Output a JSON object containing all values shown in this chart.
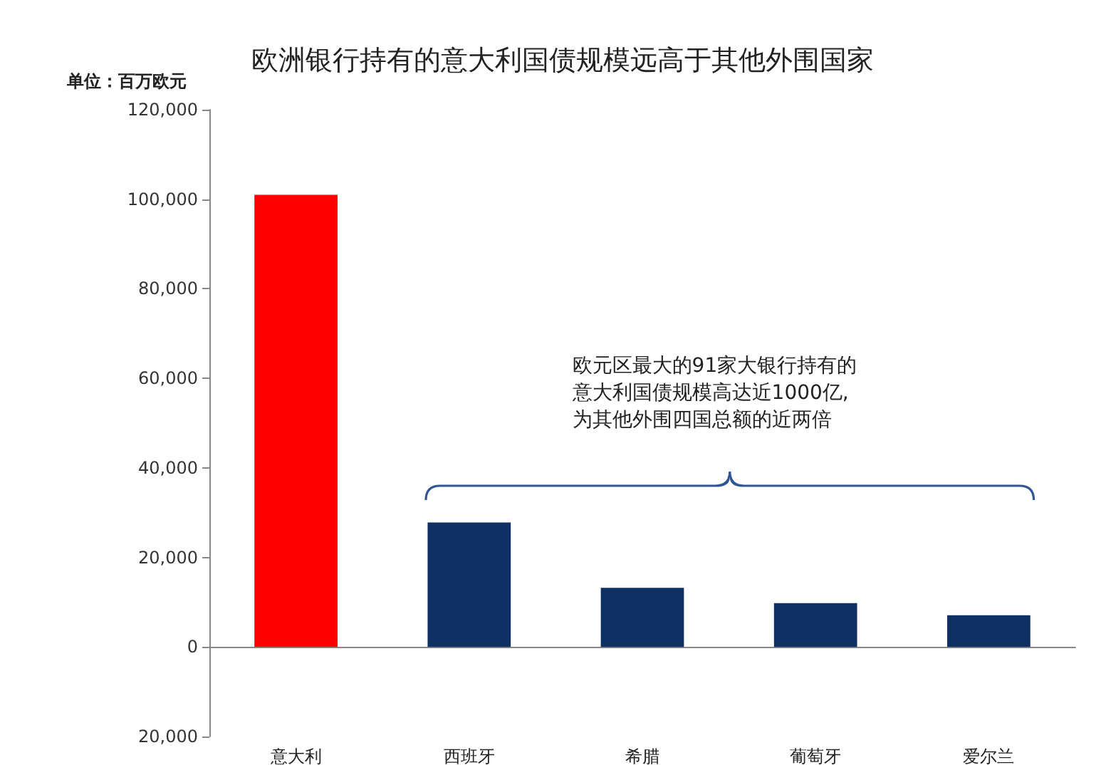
{
  "chart_data": {
    "type": "bar",
    "title": "欧洲银行持有的意大利国债规模远高于其他外围国家",
    "ylabel": "单位：百万欧元",
    "categories": [
      "意大利",
      "西班牙",
      "希腊",
      "葡萄牙",
      "爱尔兰"
    ],
    "values": [
      101000,
      27800,
      13200,
      9800,
      7100
    ],
    "colors": [
      "#ff0000",
      "#0f3063",
      "#0f3063",
      "#0f3063",
      "#0f3063"
    ],
    "ylim": [
      -20000,
      120000
    ],
    "yticks": [
      {
        "value": -20000,
        "label": "20,000"
      },
      {
        "value": 0,
        "label": "0"
      },
      {
        "value": 20000,
        "label": "20,000"
      },
      {
        "value": 40000,
        "label": "40,000"
      },
      {
        "value": 60000,
        "label": "60,000"
      },
      {
        "value": 80000,
        "label": "80,000"
      },
      {
        "value": 100000,
        "label": "100,000"
      },
      {
        "value": 120000,
        "label": "120,000"
      }
    ],
    "annotations": [
      "欧元区最大的91家大银行持有的意大利国债规模高达近1000亿,为其他外围四国总额的近两倍"
    ]
  }
}
